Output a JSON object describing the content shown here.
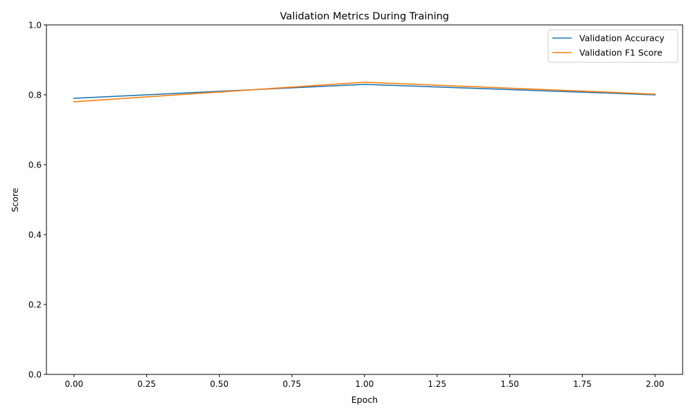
{
  "chart_data": {
    "type": "line",
    "title": "Validation Metrics During Training",
    "xlabel": "Epoch",
    "ylabel": "Score",
    "xlim": [
      -0.095,
      2.095
    ],
    "ylim": [
      0.0,
      1.0
    ],
    "x_ticks": [
      0.0,
      0.25,
      0.5,
      0.75,
      1.0,
      1.25,
      1.5,
      1.75,
      2.0
    ],
    "x_tick_labels": [
      "0.00",
      "0.25",
      "0.50",
      "0.75",
      "1.00",
      "1.25",
      "1.50",
      "1.75",
      "2.00"
    ],
    "y_ticks": [
      0.0,
      0.2,
      0.4,
      0.6,
      0.8,
      1.0
    ],
    "y_tick_labels": [
      "0.0",
      "0.2",
      "0.4",
      "0.6",
      "0.8",
      "1.0"
    ],
    "grid": false,
    "legend_position": "top-right",
    "x": [
      0,
      1,
      2
    ],
    "series": [
      {
        "name": "Validation Accuracy",
        "color": "#1f77b4",
        "values": [
          0.79,
          0.83,
          0.8
        ]
      },
      {
        "name": "Validation F1 Score",
        "color": "#ff7f0e",
        "values": [
          0.78,
          0.836,
          0.802
        ]
      }
    ]
  }
}
